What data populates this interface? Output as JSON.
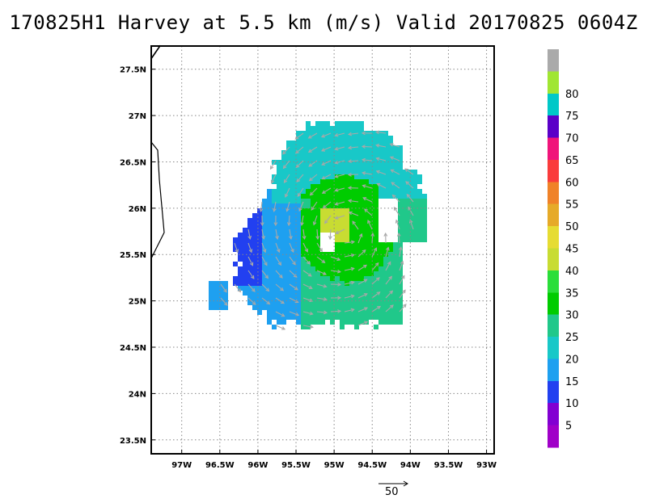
{
  "chart_data": {
    "type": "heatmap",
    "title": "170825H1 Harvey at 5.5 km (m/s) Valid 20170825 0604Z",
    "xlabel": "",
    "ylabel": "",
    "xlim": [
      -97.4,
      -92.9
    ],
    "ylim": [
      23.35,
      27.75
    ],
    "grid": true,
    "x_ticks": [
      {
        "value": -97.0,
        "label": "97W"
      },
      {
        "value": -96.5,
        "label": "96.5W"
      },
      {
        "value": -96.0,
        "label": "96W"
      },
      {
        "value": -95.5,
        "label": "95.5W"
      },
      {
        "value": -95.0,
        "label": "95W"
      },
      {
        "value": -94.5,
        "label": "94.5W"
      },
      {
        "value": -94.0,
        "label": "94W"
      },
      {
        "value": -93.5,
        "label": "93.5W"
      },
      {
        "value": -93.0,
        "label": "93W"
      }
    ],
    "y_ticks": [
      {
        "value": 27.5,
        "label": "27.5N"
      },
      {
        "value": 27.0,
        "label": "27N"
      },
      {
        "value": 26.5,
        "label": "26.5N"
      },
      {
        "value": 26.0,
        "label": "26N"
      },
      {
        "value": 25.5,
        "label": "25.5N"
      },
      {
        "value": 25.0,
        "label": "25N"
      },
      {
        "value": 24.5,
        "label": "24.5N"
      },
      {
        "value": 24.0,
        "label": "24N"
      },
      {
        "value": 23.5,
        "label": "23.5N"
      }
    ],
    "colorbar": {
      "units": "m/s",
      "levels": [
        {
          "label": "",
          "color": "#aaaaaa"
        },
        {
          "label": "80",
          "color": "#a0e632"
        },
        {
          "label": "75",
          "color": "#00c8c8"
        },
        {
          "label": "70",
          "color": "#5a00c8"
        },
        {
          "label": "65",
          "color": "#f0147a"
        },
        {
          "label": "60",
          "color": "#fa3c3c"
        },
        {
          "label": "55",
          "color": "#f08228"
        },
        {
          "label": "50",
          "color": "#e6aa28"
        },
        {
          "label": "45",
          "color": "#e6dc32"
        },
        {
          "label": "40",
          "color": "#c8dc32"
        },
        {
          "label": "35",
          "color": "#2ade3a"
        },
        {
          "label": "30",
          "color": "#00cc00"
        },
        {
          "label": "25",
          "color": "#20c88a"
        },
        {
          "label": "20",
          "color": "#18c8c8"
        },
        {
          "label": "15",
          "color": "#1ea0f0"
        },
        {
          "label": "10",
          "color": "#2240f0"
        },
        {
          "label": "5",
          "color": "#8200d2"
        },
        {
          "label": "",
          "color": "#a000c8"
        }
      ]
    },
    "wind_field": {
      "center": {
        "lon": -94.85,
        "lat": 25.72
      },
      "levels": [
        {
          "range_m_s": [
            10,
            15
          ],
          "region": "western band near 96.3W"
        },
        {
          "range_m_s": [
            15,
            20
          ],
          "region": "outer western and southern rain area"
        },
        {
          "range_m_s": [
            20,
            25
          ],
          "region": "northern and eastern outer core"
        },
        {
          "range_m_s": [
            25,
            30
          ],
          "region": "eastern semicircle"
        },
        {
          "range_m_s": [
            30,
            35
          ],
          "region": "eyewall ring"
        },
        {
          "range_m_s": [
            40,
            45
          ],
          "region": "northeast eyewall maximum"
        }
      ]
    },
    "reference_vector": {
      "value": 50,
      "label": "50"
    }
  }
}
